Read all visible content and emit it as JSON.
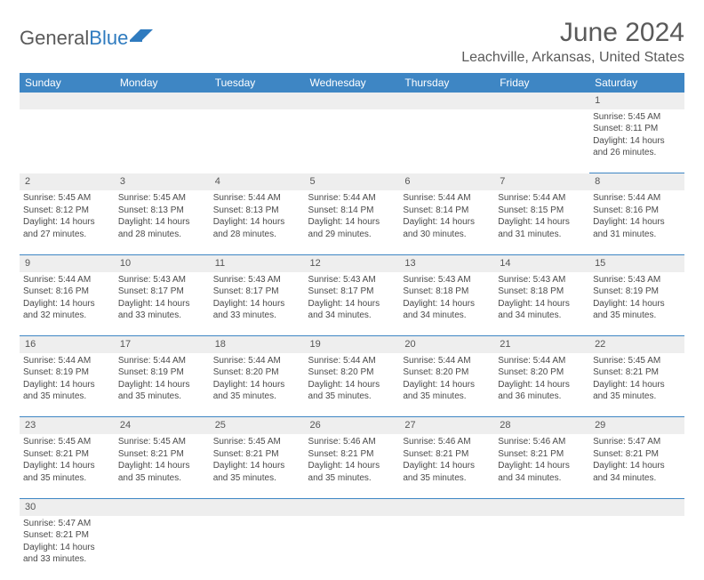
{
  "logo": {
    "text1": "General",
    "text2": "Blue",
    "flag_color": "#2f7bbf"
  },
  "title": "June 2024",
  "location": "Leachville, Arkansas, United States",
  "colors": {
    "header_bg": "#3e86c4",
    "header_text": "#ffffff",
    "grey_row": "#eeeeee",
    "rule": "#3e86c4",
    "text": "#4a4a4a",
    "title_text": "#5a5a5a"
  },
  "weekdays": [
    "Sunday",
    "Monday",
    "Tuesday",
    "Wednesday",
    "Thursday",
    "Friday",
    "Saturday"
  ],
  "weeks": [
    [
      null,
      null,
      null,
      null,
      null,
      null,
      {
        "n": "1",
        "sr": "5:45 AM",
        "ss": "8:11 PM",
        "dl": "14 hours and 26 minutes."
      }
    ],
    [
      {
        "n": "2",
        "sr": "5:45 AM",
        "ss": "8:12 PM",
        "dl": "14 hours and 27 minutes."
      },
      {
        "n": "3",
        "sr": "5:45 AM",
        "ss": "8:13 PM",
        "dl": "14 hours and 28 minutes."
      },
      {
        "n": "4",
        "sr": "5:44 AM",
        "ss": "8:13 PM",
        "dl": "14 hours and 28 minutes."
      },
      {
        "n": "5",
        "sr": "5:44 AM",
        "ss": "8:14 PM",
        "dl": "14 hours and 29 minutes."
      },
      {
        "n": "6",
        "sr": "5:44 AM",
        "ss": "8:14 PM",
        "dl": "14 hours and 30 minutes."
      },
      {
        "n": "7",
        "sr": "5:44 AM",
        "ss": "8:15 PM",
        "dl": "14 hours and 31 minutes."
      },
      {
        "n": "8",
        "sr": "5:44 AM",
        "ss": "8:16 PM",
        "dl": "14 hours and 31 minutes."
      }
    ],
    [
      {
        "n": "9",
        "sr": "5:44 AM",
        "ss": "8:16 PM",
        "dl": "14 hours and 32 minutes."
      },
      {
        "n": "10",
        "sr": "5:43 AM",
        "ss": "8:17 PM",
        "dl": "14 hours and 33 minutes."
      },
      {
        "n": "11",
        "sr": "5:43 AM",
        "ss": "8:17 PM",
        "dl": "14 hours and 33 minutes."
      },
      {
        "n": "12",
        "sr": "5:43 AM",
        "ss": "8:17 PM",
        "dl": "14 hours and 34 minutes."
      },
      {
        "n": "13",
        "sr": "5:43 AM",
        "ss": "8:18 PM",
        "dl": "14 hours and 34 minutes."
      },
      {
        "n": "14",
        "sr": "5:43 AM",
        "ss": "8:18 PM",
        "dl": "14 hours and 34 minutes."
      },
      {
        "n": "15",
        "sr": "5:43 AM",
        "ss": "8:19 PM",
        "dl": "14 hours and 35 minutes."
      }
    ],
    [
      {
        "n": "16",
        "sr": "5:44 AM",
        "ss": "8:19 PM",
        "dl": "14 hours and 35 minutes."
      },
      {
        "n": "17",
        "sr": "5:44 AM",
        "ss": "8:19 PM",
        "dl": "14 hours and 35 minutes."
      },
      {
        "n": "18",
        "sr": "5:44 AM",
        "ss": "8:20 PM",
        "dl": "14 hours and 35 minutes."
      },
      {
        "n": "19",
        "sr": "5:44 AM",
        "ss": "8:20 PM",
        "dl": "14 hours and 35 minutes."
      },
      {
        "n": "20",
        "sr": "5:44 AM",
        "ss": "8:20 PM",
        "dl": "14 hours and 35 minutes."
      },
      {
        "n": "21",
        "sr": "5:44 AM",
        "ss": "8:20 PM",
        "dl": "14 hours and 36 minutes."
      },
      {
        "n": "22",
        "sr": "5:45 AM",
        "ss": "8:21 PM",
        "dl": "14 hours and 35 minutes."
      }
    ],
    [
      {
        "n": "23",
        "sr": "5:45 AM",
        "ss": "8:21 PM",
        "dl": "14 hours and 35 minutes."
      },
      {
        "n": "24",
        "sr": "5:45 AM",
        "ss": "8:21 PM",
        "dl": "14 hours and 35 minutes."
      },
      {
        "n": "25",
        "sr": "5:45 AM",
        "ss": "8:21 PM",
        "dl": "14 hours and 35 minutes."
      },
      {
        "n": "26",
        "sr": "5:46 AM",
        "ss": "8:21 PM",
        "dl": "14 hours and 35 minutes."
      },
      {
        "n": "27",
        "sr": "5:46 AM",
        "ss": "8:21 PM",
        "dl": "14 hours and 35 minutes."
      },
      {
        "n": "28",
        "sr": "5:46 AM",
        "ss": "8:21 PM",
        "dl": "14 hours and 34 minutes."
      },
      {
        "n": "29",
        "sr": "5:47 AM",
        "ss": "8:21 PM",
        "dl": "14 hours and 34 minutes."
      }
    ],
    [
      {
        "n": "30",
        "sr": "5:47 AM",
        "ss": "8:21 PM",
        "dl": "14 hours and 33 minutes."
      },
      null,
      null,
      null,
      null,
      null,
      null
    ]
  ],
  "labels": {
    "sunrise": "Sunrise:",
    "sunset": "Sunset:",
    "daylight": "Daylight:"
  }
}
